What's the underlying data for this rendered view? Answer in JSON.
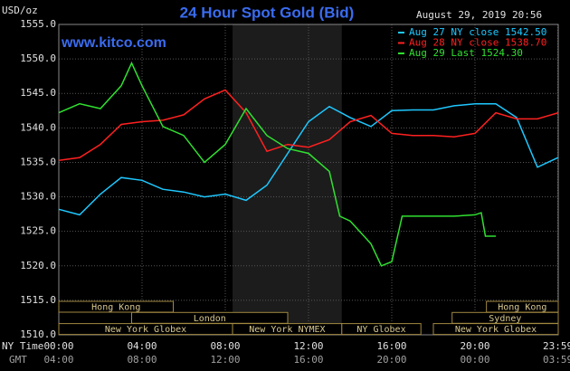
{
  "chart_data": {
    "type": "line",
    "title": "24 Hour Spot Gold (Bid)",
    "units": "USD/oz",
    "timestamp": "August 29, 2019 20:56",
    "watermark": "www.kitco.com",
    "x_row_label": "NY Time",
    "x2_row_label": "GMT",
    "xlim": [
      0,
      24
    ],
    "xticks": [
      {
        "value": 0,
        "label": "00:00"
      },
      {
        "value": 4,
        "label": "04:00"
      },
      {
        "value": 8,
        "label": "08:00"
      },
      {
        "value": 12,
        "label": "12:00"
      },
      {
        "value": 16,
        "label": "16:00"
      },
      {
        "value": 20,
        "label": "20:00"
      },
      {
        "value": 23.98,
        "label": "23:59"
      }
    ],
    "x2ticks": [
      "04:00",
      "08:00",
      "12:00",
      "16:00",
      "20:00",
      "00:00",
      "03:59"
    ],
    "ylim": [
      1510,
      1555
    ],
    "yticks": [
      {
        "value": 1510,
        "label": "1510.0"
      },
      {
        "value": 1515,
        "label": "1515.0"
      },
      {
        "value": 1520,
        "label": "1520.0"
      },
      {
        "value": 1525,
        "label": "1525.0"
      },
      {
        "value": 1530,
        "label": "1530.0"
      },
      {
        "value": 1535,
        "label": "1535.0"
      },
      {
        "value": 1540,
        "label": "1540.0"
      },
      {
        "value": 1545,
        "label": "1545.0"
      },
      {
        "value": 1550,
        "label": "1550.0"
      },
      {
        "value": 1555,
        "label": "1555.0"
      }
    ],
    "grid": true,
    "highlight": [
      8.35,
      13.6
    ],
    "sessions": [
      {
        "name": "Hong Kong",
        "start": 0,
        "end": 5.5,
        "row": 0
      },
      {
        "name": "Hong Kong",
        "start": 20.55,
        "end": 24,
        "row": 0
      },
      {
        "name": "London",
        "start": 3.5,
        "end": 11,
        "row": 1
      },
      {
        "name": "Sydney",
        "start": 18.9,
        "end": 24,
        "row": 1
      },
      {
        "name": "New York Globex",
        "start": 0,
        "end": 8.35,
        "row": 2
      },
      {
        "name": "New York NYMEX",
        "start": 8.35,
        "end": 13.6,
        "row": 2
      },
      {
        "name": "NY Globex",
        "start": 13.6,
        "end": 17.4,
        "row": 2
      },
      {
        "name": "New York Globex",
        "start": 18,
        "end": 24,
        "row": 2
      }
    ],
    "series": [
      {
        "name": "Aug 27 NY close 1542.50",
        "color": "#1ec8ff",
        "x": [
          0,
          1,
          2,
          3,
          4,
          5,
          6,
          7,
          8,
          9,
          10,
          11,
          12,
          13,
          14,
          15,
          16,
          17,
          18,
          19,
          20,
          21,
          22,
          23,
          24
        ],
        "values": [
          1528.2,
          1527.4,
          1530.4,
          1532.8,
          1532.4,
          1531.1,
          1530.7,
          1530,
          1530.4,
          1529.5,
          1531.7,
          1536.3,
          1540.9,
          1543.1,
          1541.5,
          1540.2,
          1542.5,
          1542.6,
          1542.6,
          1543.2,
          1543.5,
          1543.5,
          1541.5,
          1534.3,
          1535.7
        ]
      },
      {
        "name": "Aug 28 NY close 1538.70",
        "color": "#ff2020",
        "x": [
          0,
          1,
          2,
          3,
          4,
          5,
          6,
          7,
          8,
          9,
          10,
          11,
          12,
          13,
          14,
          15,
          16,
          17,
          18,
          19,
          20,
          21,
          22,
          23,
          24
        ],
        "values": [
          1535.3,
          1535.7,
          1537.6,
          1540.5,
          1540.9,
          1541.1,
          1541.9,
          1544.2,
          1545.5,
          1542.2,
          1536.6,
          1537.6,
          1537.2,
          1538.3,
          1540.9,
          1541.8,
          1539.2,
          1538.9,
          1538.9,
          1538.7,
          1539.2,
          1542.2,
          1541.3,
          1541.3,
          1542.2
        ]
      },
      {
        "name": "Aug 29 Last 1524.30",
        "color": "#30e030",
        "x": [
          0,
          1,
          2,
          3,
          3.5,
          4,
          5,
          6,
          7,
          8,
          9,
          10,
          11,
          12,
          13,
          13.5,
          14,
          15,
          15.5,
          16,
          16.5,
          17,
          18,
          19,
          20,
          20.3,
          20.5,
          21
        ],
        "values": [
          1542.2,
          1543.5,
          1542.8,
          1546.1,
          1549.4,
          1546.1,
          1540.2,
          1538.9,
          1535,
          1537.6,
          1542.8,
          1538.9,
          1537,
          1536.3,
          1533.7,
          1527.2,
          1526.5,
          1523.2,
          1520,
          1520.6,
          1527.2,
          1527.2,
          1527.2,
          1527.2,
          1527.4,
          1527.7,
          1524.3,
          1524.3
        ]
      }
    ]
  }
}
